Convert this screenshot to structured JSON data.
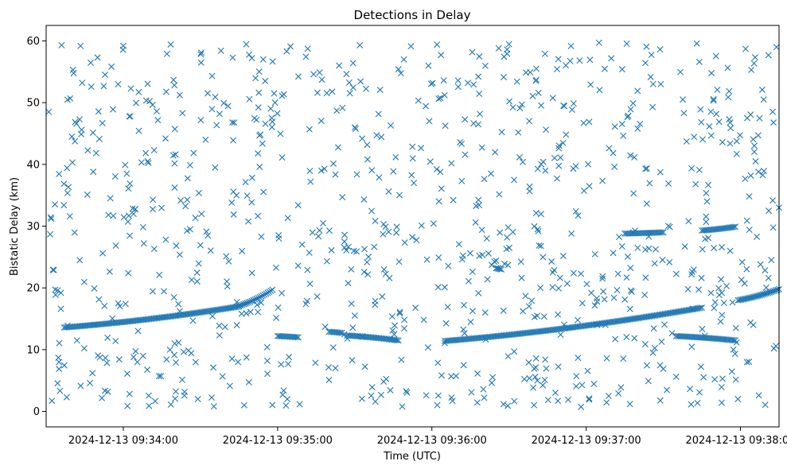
{
  "chart_data": {
    "type": "scatter",
    "title": "Detections in Delay",
    "xlabel": "Time (UTC)",
    "ylabel": "Bistatic Delay (km)",
    "x_range_seconds": [
      "09:33:30",
      "09:38:15"
    ],
    "ylim": [
      -2.5,
      62.5
    ],
    "x_tick_labels": [
      "2024-12-13 09:34:00",
      "2024-12-13 09:35:00",
      "2024-12-13 09:36:00",
      "2024-12-13 09:37:00",
      "2024-12-13 09:38:00"
    ],
    "x_tick_times": [
      "09:34:00",
      "09:35:00",
      "09:36:00",
      "09:37:00",
      "09:38:00"
    ],
    "y_ticks": [
      0,
      10,
      20,
      30,
      40,
      50,
      60
    ],
    "marker": "x",
    "grid": false,
    "series": [
      {
        "color": "#1f77b4",
        "tracks": [
          {
            "t_start": "09:33:37",
            "t_end": "09:34:45",
            "y_start": 13.6,
            "y_end": 17.0
          },
          {
            "t_start": "09:34:45",
            "t_end": "09:34:58",
            "y_start": 17.1,
            "y_end": 19.7
          },
          {
            "t_start": "09:35:00",
            "t_end": "09:35:08",
            "y_start": 12.2,
            "y_end": 12.0
          },
          {
            "t_start": "09:35:20",
            "t_end": "09:35:25",
            "y_start": 12.9,
            "y_end": 12.7
          },
          {
            "t_start": "09:35:27",
            "t_end": "09:35:47",
            "y_start": 12.3,
            "y_end": 11.5
          },
          {
            "t_start": "09:36:05",
            "t_end": "09:37:45",
            "y_start": 11.4,
            "y_end": 16.8
          },
          {
            "t_start": "09:36:25",
            "t_end": "09:36:27",
            "y_start": 23.2,
            "y_end": 23.0
          },
          {
            "t_start": "09:37:15",
            "t_end": "09:37:30",
            "y_start": 28.8,
            "y_end": 29.0
          },
          {
            "t_start": "09:37:45",
            "t_end": "09:37:58",
            "y_start": 29.3,
            "y_end": 29.9
          },
          {
            "t_start": "09:37:35",
            "t_end": "09:37:58",
            "y_start": 12.2,
            "y_end": 11.5
          },
          {
            "t_start": "09:37:59",
            "t_end": "09:38:15",
            "y_start": 18.0,
            "y_end": 19.8
          }
        ],
        "scatter_points": [
          [
            "09:33:31",
            48.5
          ],
          [
            "09:33:32",
            31.2
          ],
          [
            "09:33:33",
            22.9
          ],
          [
            "09:33:35",
            8.0
          ],
          [
            "09:33:36",
            59.3
          ],
          [
            "09:33:38",
            2.3
          ],
          [
            "09:33:40",
            44.5
          ],
          [
            "09:33:42",
            11.5
          ],
          [
            "09:33:44",
            53.2
          ],
          [
            "09:33:46",
            35.1
          ],
          [
            "09:33:48",
            6.2
          ],
          [
            "09:33:50",
            57.3
          ],
          [
            "09:33:52",
            25.6
          ],
          [
            "09:33:54",
            3.2
          ],
          [
            "09:33:56",
            48.9
          ],
          [
            "09:33:58",
            17.5
          ],
          [
            "09:34:00",
            59.2
          ],
          [
            "09:34:02",
            36.1
          ],
          [
            "09:34:04",
            8.8
          ],
          [
            "09:34:06",
            51.7
          ],
          [
            "09:34:08",
            27.2
          ],
          [
            "09:34:10",
            0.9
          ],
          [
            "09:34:12",
            42.3
          ],
          [
            "09:34:14",
            22.1
          ],
          [
            "09:34:17",
            57.9
          ],
          [
            "09:34:20",
            11.0
          ],
          [
            "09:34:23",
            48.3
          ],
          [
            "09:34:26",
            29.5
          ],
          [
            "09:34:29",
            2.0
          ],
          [
            "09:34:32",
            44.0
          ],
          [
            "09:34:35",
            7.1
          ],
          [
            "09:34:38",
            58.4
          ],
          [
            "09:34:41",
            24.3
          ],
          [
            "09:34:44",
            35.0
          ],
          [
            "09:34:47",
            1.0
          ],
          [
            "09:34:50",
            57.2
          ],
          [
            "09:34:53",
            39.6
          ],
          [
            "09:34:56",
            8.2
          ],
          [
            "09:34:59",
            50.0
          ],
          [
            "09:35:02",
            2.7
          ],
          [
            "09:35:05",
            59.1
          ],
          [
            "09:35:08",
            33.4
          ],
          [
            "09:35:11",
            17.4
          ],
          [
            "09:35:14",
            54.6
          ],
          [
            "09:35:17",
            39.0
          ],
          [
            "09:35:20",
            5.1
          ],
          [
            "09:35:23",
            48.7
          ],
          [
            "09:35:26",
            27.5
          ],
          [
            "09:35:29",
            8.3
          ],
          [
            "09:35:32",
            59.3
          ],
          [
            "09:35:35",
            40.8
          ],
          [
            "09:35:38",
            1.6
          ],
          [
            "09:35:41",
            28.7
          ],
          [
            "09:35:44",
            46.3
          ],
          [
            "09:35:47",
            55.4
          ],
          [
            "09:35:50",
            3.3
          ],
          [
            "09:35:53",
            37.0
          ],
          [
            "09:35:56",
            30.1
          ],
          [
            "09:35:59",
            47.0
          ],
          [
            "09:36:02",
            59.4
          ],
          [
            "09:36:05",
            20.1
          ],
          [
            "09:36:08",
            1.7
          ],
          [
            "09:36:11",
            43.6
          ],
          [
            "09:36:14",
            53.2
          ],
          [
            "09:36:17",
            30.6
          ],
          [
            "09:36:20",
            3.6
          ],
          [
            "09:36:23",
            38.5
          ],
          [
            "09:36:26",
            58.8
          ],
          [
            "09:36:29",
            26.3
          ],
          [
            "09:36:32",
            9.7
          ],
          [
            "09:36:35",
            49.7
          ],
          [
            "09:36:38",
            36.4
          ],
          [
            "09:36:41",
            5.0
          ],
          [
            "09:36:44",
            57.9
          ],
          [
            "09:36:47",
            22.5
          ],
          [
            "09:36:50",
            41.1
          ],
          [
            "09:36:53",
            1.9
          ],
          [
            "09:36:56",
            32.4
          ],
          [
            "09:36:59",
            46.7
          ],
          [
            "09:37:02",
            19.2
          ],
          [
            "09:37:05",
            59.7
          ],
          [
            "09:37:08",
            8.6
          ],
          [
            "09:37:11",
            39.6
          ],
          [
            "09:37:14",
            55.4
          ],
          [
            "09:37:17",
            1.2
          ],
          [
            "09:37:20",
            45.8
          ],
          [
            "09:37:23",
            26.2
          ],
          [
            "09:37:26",
            9.5
          ],
          [
            "09:37:29",
            53.0
          ],
          [
            "09:37:32",
            36.9
          ],
          [
            "09:37:35",
            5.6
          ],
          [
            "09:37:38",
            48.3
          ],
          [
            "09:37:41",
            22.2
          ],
          [
            "09:37:44",
            56.6
          ],
          [
            "09:37:47",
            34.0
          ],
          [
            "09:37:50",
            5.2
          ],
          [
            "09:37:53",
            43.6
          ],
          [
            "09:37:56",
            26.0
          ],
          [
            "09:37:59",
            2.0
          ],
          [
            "09:38:02",
            58.7
          ],
          [
            "09:38:05",
            14.0
          ],
          [
            "09:38:07",
            38.8
          ],
          [
            "09:38:09",
            50.5
          ],
          [
            "09:38:11",
            32.5
          ],
          [
            "09:38:13",
            10.2
          ],
          [
            "09:38:14",
            59.0
          ],
          [
            "09:38:15",
            33.0
          ]
        ]
      }
    ]
  }
}
